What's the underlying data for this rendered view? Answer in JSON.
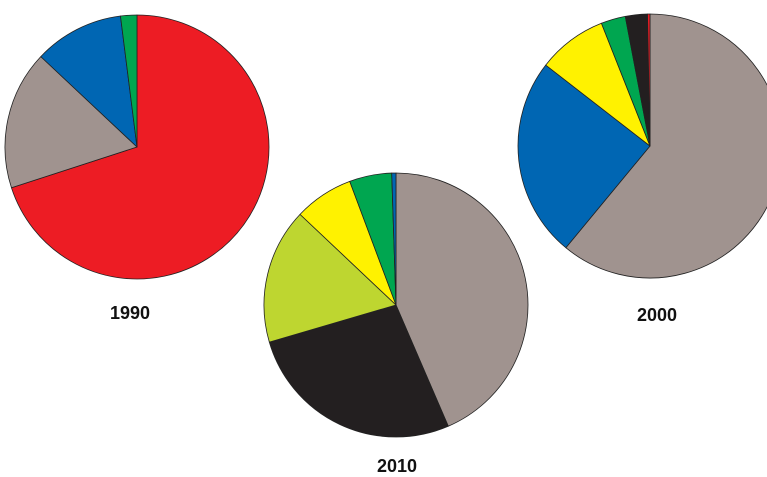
{
  "chart_data": [
    {
      "type": "pie",
      "title": "1990",
      "slices": [
        {
          "value": 70.0,
          "color": "#ed1c24"
        },
        {
          "value": 17.0,
          "color": "#a0938f"
        },
        {
          "value": 11.0,
          "color": "#0066b3"
        },
        {
          "value": 2.0,
          "color": "#00a650"
        }
      ]
    },
    {
      "type": "pie",
      "title": "2010",
      "slices": [
        {
          "value": 42.0,
          "color": "#a0938f"
        },
        {
          "value": 26.0,
          "color": "#231f20"
        },
        {
          "value": 16.0,
          "color": "#bed630"
        },
        {
          "value": 7.0,
          "color": "#fff200"
        },
        {
          "value": 5.0,
          "color": "#00a650"
        },
        {
          "value": 0.5,
          "color": "#0066b3"
        }
      ]
    },
    {
      "type": "pie",
      "title": "2000",
      "slices": [
        {
          "value": 61.0,
          "color": "#a0938f"
        },
        {
          "value": 24.5,
          "color": "#0066b3"
        },
        {
          "value": 8.5,
          "color": "#fff200"
        },
        {
          "value": 3.0,
          "color": "#00a650"
        },
        {
          "value": 2.7,
          "color": "#231f20"
        },
        {
          "value": 0.3,
          "color": "#ed1c24"
        }
      ]
    }
  ]
}
